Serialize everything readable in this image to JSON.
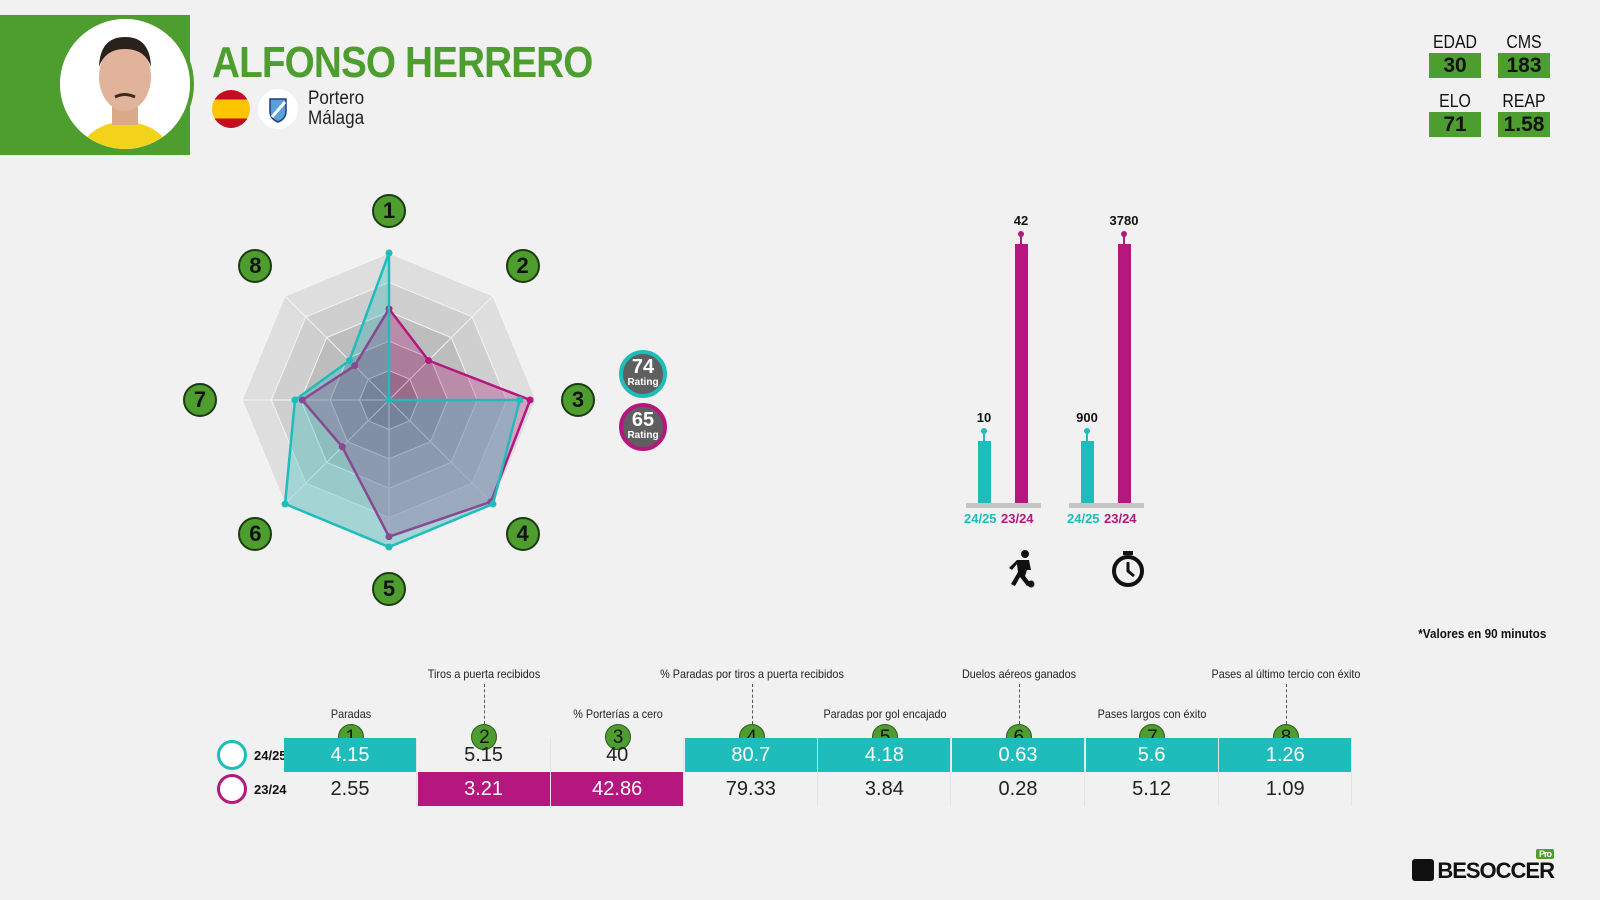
{
  "player": {
    "name": "ALFONSO HERRERO",
    "position": "Portero",
    "team": "Málaga",
    "nationality": "Spain"
  },
  "stats": [
    {
      "label": "EDAD",
      "value": "30"
    },
    {
      "label": "CMS",
      "value": "183"
    },
    {
      "label": "ELO",
      "value": "71"
    },
    {
      "label": "REAP",
      "value": "1.58"
    }
  ],
  "colors": {
    "green": "#4d9d2f",
    "season_current": "#1fbcbc",
    "season_previous": "#b5177e"
  },
  "ratings": [
    {
      "value": "74",
      "label": "Rating",
      "season": "24/25"
    },
    {
      "value": "65",
      "label": "Rating",
      "season": "23/24"
    }
  ],
  "chart_data": [
    {
      "type": "radar",
      "axes": [
        "1",
        "2",
        "3",
        "4",
        "5",
        "6",
        "7",
        "8"
      ],
      "range": [
        0,
        1
      ],
      "series": [
        {
          "name": "24/25",
          "values": [
            1.0,
            0,
            0.89,
            1.0,
            1.0,
            1.0,
            0.64,
            0.38
          ]
        },
        {
          "name": "23/24",
          "values": [
            0.62,
            0.38,
            0.96,
            0.98,
            0.93,
            0.45,
            0.59,
            0.33
          ]
        }
      ]
    },
    {
      "type": "bar",
      "title": "Partidos",
      "icon": "player-kicking-icon",
      "categories": [
        "24/25",
        "23/24"
      ],
      "values": [
        10,
        42
      ],
      "labels": [
        "10",
        "42"
      ]
    },
    {
      "type": "bar",
      "title": "Minutos",
      "icon": "stopwatch-icon",
      "categories": [
        "24/25",
        "23/24"
      ],
      "values": [
        900,
        3780
      ],
      "labels": [
        "900",
        "3780"
      ]
    }
  ],
  "note": "*Valores en 90 minutos",
  "table": {
    "columns": [
      {
        "num": "1",
        "label": "Paradas"
      },
      {
        "num": "2",
        "label": "Tiros a puerta recibidos"
      },
      {
        "num": "3",
        "label": "% Porterías a cero"
      },
      {
        "num": "4",
        "label": "% Paradas por tiros a puerta recibidos"
      },
      {
        "num": "5",
        "label": "Paradas por gol encajado"
      },
      {
        "num": "6",
        "label": "Duelos aéreos ganados"
      },
      {
        "num": "7",
        "label": "Pases largos con éxito"
      },
      {
        "num": "8",
        "label": "Pases al último tercio con éxito"
      }
    ],
    "rows": [
      {
        "season": "24/25",
        "values": [
          "4.15",
          "5.15",
          "40",
          "80.7",
          "4.18",
          "0.63",
          "5.6",
          "1.26"
        ],
        "highlight": [
          1,
          0,
          0,
          1,
          1,
          1,
          1,
          1
        ]
      },
      {
        "season": "23/24",
        "values": [
          "2.55",
          "3.21",
          "42.86",
          "79.33",
          "3.84",
          "0.28",
          "5.12",
          "1.09"
        ],
        "highlight": [
          0,
          1,
          1,
          0,
          0,
          0,
          0,
          0
        ]
      }
    ]
  },
  "brand": {
    "logo": "BESOCCER",
    "badge": "Pro"
  }
}
